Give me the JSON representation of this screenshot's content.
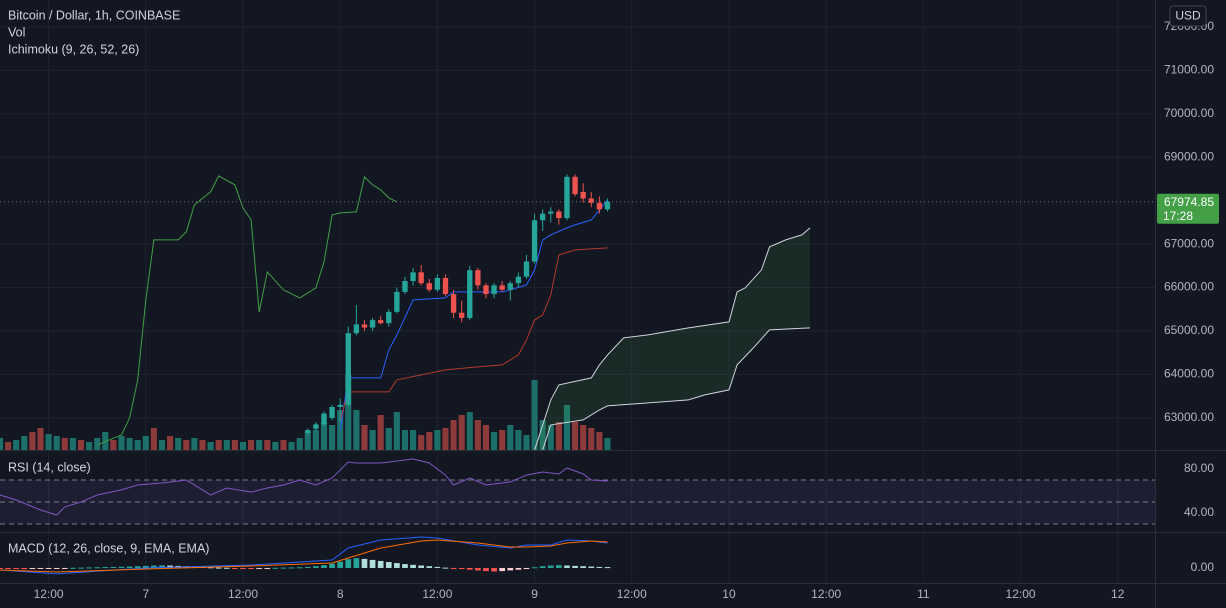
{
  "chart_data": [
    {
      "type": "candlestick",
      "title": "Bitcoin / Dollar, 1h, COINBASE",
      "currency": "USD",
      "grid": true,
      "xlim": [
        -18,
        124.6
      ],
      "xticks": [
        {
          "value": -12,
          "label": "12:00"
        },
        {
          "value": 0,
          "label": "7"
        },
        {
          "value": 12,
          "label": "12:00"
        },
        {
          "value": 24,
          "label": "8"
        },
        {
          "value": 36,
          "label": "12:00"
        },
        {
          "value": 48,
          "label": "9"
        },
        {
          "value": 60,
          "label": "12:00"
        },
        {
          "value": 72,
          "label": "10"
        },
        {
          "value": 84,
          "label": "12:00"
        },
        {
          "value": 96,
          "label": "11"
        },
        {
          "value": 108,
          "label": "12:00"
        },
        {
          "value": 120,
          "label": "12"
        }
      ],
      "ylim": [
        62260,
        72620
      ],
      "yticks": [
        {
          "value": 72000,
          "label": "72000.00"
        },
        {
          "value": 71000,
          "label": "71000.00"
        },
        {
          "value": 70000,
          "label": "70000.00"
        },
        {
          "value": 69000,
          "label": "69000.00"
        },
        {
          "value": 67000,
          "label": "67000.00"
        },
        {
          "value": 66000,
          "label": "66000.00"
        },
        {
          "value": 65000,
          "label": "65000.00"
        },
        {
          "value": 64000,
          "label": "64000.00"
        },
        {
          "value": 63000,
          "label": "63000.00"
        }
      ],
      "candles": {
        "up_color": "#26a69a",
        "down_color": "#ef5350",
        "x": [
          20,
          21,
          22,
          23,
          24,
          25,
          26,
          27,
          28,
          29,
          30,
          31,
          32,
          33,
          34,
          35,
          36,
          37,
          38,
          39,
          40,
          41,
          42,
          43,
          44,
          45,
          46,
          47,
          48,
          49,
          50,
          51,
          52,
          53,
          54,
          55,
          56,
          57
        ],
        "open": [
          62650,
          62750,
          62850,
          63000,
          63250,
          63300,
          64950,
          65150,
          65080,
          65250,
          65180,
          65440,
          65900,
          66150,
          66350,
          66100,
          65950,
          66220,
          65850,
          65420,
          65300,
          66400,
          66050,
          65850,
          66050,
          65950,
          66100,
          66250,
          66600,
          67550,
          67700,
          67750,
          67600,
          68550,
          68200,
          68050,
          67950,
          67800
        ],
        "high": [
          62750,
          62900,
          63150,
          63300,
          63450,
          65100,
          65600,
          65250,
          65300,
          65350,
          65500,
          66000,
          66250,
          66450,
          66520,
          66200,
          66300,
          66300,
          65950,
          65700,
          66500,
          66450,
          66100,
          66100,
          66150,
          66150,
          66350,
          66750,
          67700,
          67800,
          67850,
          67800,
          68600,
          68600,
          68400,
          68200,
          68100,
          68050
        ],
        "low": [
          62600,
          62700,
          62800,
          62950,
          62900,
          63250,
          64900,
          65000,
          65000,
          65150,
          65100,
          65400,
          65850,
          66050,
          66050,
          65900,
          65900,
          65800,
          65300,
          65200,
          65250,
          65950,
          65750,
          65750,
          65900,
          65700,
          66000,
          66200,
          66550,
          67300,
          67500,
          67450,
          67550,
          68100,
          67950,
          67850,
          67700,
          67750
        ],
        "close": [
          62720,
          62850,
          63100,
          63250,
          63300,
          64950,
          65150,
          65080,
          65250,
          65180,
          65440,
          65900,
          66150,
          66350,
          66100,
          65950,
          66220,
          65850,
          65420,
          65300,
          66400,
          66050,
          65850,
          66050,
          65950,
          66100,
          66250,
          66600,
          67550,
          67700,
          67750,
          67600,
          68550,
          68150,
          68050,
          67950,
          67800,
          67974.85
        ]
      },
      "last_price": 67974.85,
      "countdown": "17:28",
      "last_price_color": "#43a047",
      "volume": {
        "name": "Vol",
        "ylim": [
          0,
          450
        ],
        "up_color": "#1d6f69",
        "down_color": "#8c3a3a",
        "x": [
          -18,
          -17,
          -16,
          -15,
          -14,
          -13,
          -12,
          -11,
          -10,
          -9,
          -8,
          -7,
          -6,
          -5,
          -4,
          -3,
          -2,
          -1,
          0,
          1,
          2,
          3,
          4,
          5,
          6,
          7,
          8,
          9,
          10,
          11,
          12,
          13,
          14,
          15,
          16,
          17,
          18,
          19,
          20,
          21,
          22,
          23,
          24,
          25,
          26,
          27,
          28,
          29,
          30,
          31,
          32,
          33,
          34,
          35,
          36,
          37,
          38,
          39,
          40,
          41,
          42,
          43,
          44,
          45,
          46,
          47,
          48,
          49,
          50,
          51,
          52,
          53,
          54,
          55,
          56,
          57
        ],
        "values": [
          12,
          8,
          10,
          14,
          18,
          22,
          16,
          14,
          12,
          12,
          10,
          8,
          12,
          18,
          10,
          14,
          12,
          10,
          14,
          22,
          10,
          14,
          12,
          10,
          12,
          10,
          8,
          10,
          10,
          10,
          8,
          10,
          10,
          10,
          8,
          10,
          8,
          12,
          18,
          20,
          28,
          25,
          40,
          75,
          40,
          25,
          20,
          35,
          22,
          38,
          20,
          20,
          15,
          18,
          20,
          22,
          30,
          35,
          38,
          30,
          25,
          18,
          20,
          25,
          20,
          15,
          70,
          30,
          25,
          28,
          45,
          28,
          25,
          22,
          18,
          12
        ],
        "directions": [
          "up",
          "down",
          "up",
          "up",
          "down",
          "down",
          "up",
          "up",
          "down",
          "up",
          "down",
          "up",
          "up",
          "up",
          "down",
          "up",
          "up",
          "up",
          "up",
          "down",
          "up",
          "down",
          "up",
          "down",
          "up",
          "down",
          "up",
          "down",
          "up",
          "down",
          "up",
          "down",
          "up",
          "down",
          "up",
          "down",
          "up",
          "up",
          "up",
          "up",
          "up",
          "up",
          "up",
          "up",
          "up",
          "down",
          "up",
          "down",
          "up",
          "up",
          "up",
          "up",
          "down",
          "down",
          "up",
          "down",
          "down",
          "down",
          "up",
          "down",
          "down",
          "up",
          "down",
          "up",
          "up",
          "up",
          "up",
          "up",
          "up",
          "down",
          "up",
          "down",
          "down",
          "down",
          "down",
          "up"
        ]
      },
      "ichimoku": {
        "name": "Ichimoku (9, 26, 52, 26)",
        "cloud_color": "#43a04724",
        "series": [
          {
            "color": "#2962ff",
            "x": [
              24,
              25,
              29,
              30,
              31,
              33,
              37,
              38,
              44,
              45,
              47,
              48,
              49,
              50,
              52,
              53,
              55,
              56,
              57
            ],
            "values": [
              62723,
              63920,
              63920,
              64565,
              64910,
              65715,
              65762,
              65900,
              65900,
              65946,
              66061,
              66406,
              67097,
              67212,
              67373,
              67442,
              67557,
              67787,
              68018
            ]
          },
          {
            "color": "#b2392c",
            "x": [
              24,
              25,
              30,
              31,
              34,
              37,
              41,
              44,
              46,
              47,
              48,
              49,
              50,
              51,
              53,
              57
            ],
            "values": [
              62953,
              63597,
              63597,
              63874,
              63989,
              64104,
              64173,
              64219,
              64449,
              64795,
              65255,
              65370,
              65831,
              66751,
              66866,
              66912
            ]
          },
          {
            "color": "#43a047",
            "x": [
              -6,
              -3,
              -2,
              -1,
              0,
              1,
              4,
              5,
              6,
              8,
              9,
              11,
              12,
              13,
              14,
              15,
              17,
              19,
              21,
              22,
              23,
              24,
              26,
              27,
              28,
              29,
              30,
              31
            ],
            "values": [
              62378,
              62608,
              62999,
              63874,
              65715,
              67097,
              67097,
              67281,
              67902,
              68202,
              68570,
              68363,
              67833,
              67557,
              65439,
              66360,
              65946,
              65762,
              65992,
              66590,
              67672,
              67718,
              67741,
              68547,
              68363,
              68248,
              68064,
              67975
            ]
          },
          {
            "color": "#d1d4dc",
            "x": [
              48,
              50,
              51,
              55,
              56,
              57,
              59,
              62,
              67,
              72,
              73,
              74,
              76,
              77,
              79,
              81,
              82
            ],
            "values": [
              62260,
              63413,
              63758,
              63920,
              64219,
              64449,
              64841,
              64910,
              65071,
              65209,
              65900,
              65992,
              66406,
              66936,
              67097,
              67212,
              67373
            ]
          },
          {
            "color": "#d1d4dc",
            "x": [
              49,
              50,
              54,
              56,
              57,
              67,
              69,
              72,
              73,
              75,
              77,
              82
            ],
            "values": [
              62262,
              62838,
              62953,
              63183,
              63275,
              63413,
              63528,
              63644,
              64219,
              64611,
              65025,
              65071
            ]
          }
        ]
      }
    },
    {
      "type": "line",
      "title": "RSI (14, close)",
      "color": "#7e57c2",
      "band_color": "#7e57c21c",
      "bands": [
        70,
        50,
        30
      ],
      "ylim": [
        22.7,
        96.4
      ],
      "yticks": [
        {
          "value": 80,
          "label": "80.00"
        },
        {
          "value": 40,
          "label": "40.00"
        }
      ],
      "x": [
        -18,
        -16,
        -13,
        -11,
        -10,
        -8,
        -6,
        -3,
        -1,
        2,
        5,
        7,
        8,
        10,
        13,
        15,
        17,
        19,
        21,
        23,
        25,
        26,
        29,
        33,
        35,
        37,
        38,
        40,
        42,
        45,
        47,
        49,
        51,
        52,
        54,
        55,
        57
      ],
      "values": [
        56.4,
        51.8,
        42.7,
        38.2,
        45.5,
        50,
        56.4,
        61,
        65.5,
        67.3,
        70,
        61,
        56.4,
        62.7,
        59,
        62.7,
        65.5,
        70,
        65.5,
        71.8,
        86.4,
        85.5,
        85.5,
        89.1,
        85.5,
        74.5,
        65.5,
        71.8,
        65.5,
        68.2,
        74.5,
        77.3,
        75.5,
        80.9,
        75.5,
        70,
        69.1
      ]
    },
    {
      "type": "macd",
      "title": "MACD (12, 26, close, 9, EMA, EMA)",
      "ylim": [
        -430,
        1000
      ],
      "yticks": [
        {
          "value": 0,
          "label": "0.00"
        }
      ],
      "histogram": {
        "colors": [
          "#26a69a",
          "#b2dfdb",
          "#ff5252",
          "#ffcdd2"
        ],
        "x": [
          -18,
          -17,
          -16,
          -15,
          -14,
          -13,
          -12,
          -11,
          -10,
          -9,
          -8,
          -7,
          -6,
          -5,
          -4,
          -3,
          -2,
          -1,
          0,
          1,
          2,
          3,
          4,
          5,
          6,
          7,
          8,
          9,
          10,
          11,
          12,
          13,
          14,
          15,
          16,
          17,
          18,
          19,
          20,
          21,
          22,
          23,
          24,
          25,
          26,
          27,
          28,
          29,
          30,
          31,
          32,
          33,
          34,
          35,
          36,
          37,
          38,
          39,
          40,
          41,
          42,
          43,
          44,
          45,
          46,
          47,
          48,
          49,
          50,
          51,
          52,
          53,
          54,
          55,
          56,
          57
        ],
        "values": [
          -20,
          -25,
          -30,
          -35,
          -30,
          -25,
          -20,
          -15,
          -10,
          5,
          10,
          15,
          20,
          25,
          30,
          35,
          40,
          50,
          60,
          70,
          75,
          70,
          60,
          50,
          40,
          30,
          20,
          10,
          5,
          -5,
          -10,
          -15,
          -10,
          -5,
          5,
          10,
          15,
          20,
          30,
          50,
          80,
          120,
          180,
          250,
          280,
          260,
          230,
          200,
          170,
          140,
          110,
          90,
          70,
          50,
          30,
          10,
          -10,
          -30,
          -50,
          -70,
          -90,
          -100,
          -90,
          -70,
          -50,
          -30,
          20,
          50,
          70,
          80,
          70,
          60,
          50,
          40,
          30,
          25
        ]
      },
      "series": [
        {
          "color": "#2962ff",
          "x": [
            -18,
            -11,
            0,
            13,
            23,
            25,
            29,
            34,
            36,
            41,
            45,
            47,
            50,
            52,
            55,
            57
          ],
          "values": [
            -57,
            -171,
            0,
            86,
            229,
            571,
            800,
            886,
            857,
            657,
            571,
            657,
            657,
            800,
            771,
            714
          ]
        },
        {
          "color": "#ff6d00",
          "x": [
            -18,
            -11,
            0,
            13,
            23,
            25,
            29,
            34,
            36,
            41,
            45,
            47,
            50,
            52,
            55,
            57
          ],
          "values": [
            -57,
            -114,
            -29,
            57,
            143,
            286,
            571,
            771,
            800,
            714,
            600,
            600,
            629,
            714,
            771,
            743
          ]
        }
      ]
    }
  ]
}
